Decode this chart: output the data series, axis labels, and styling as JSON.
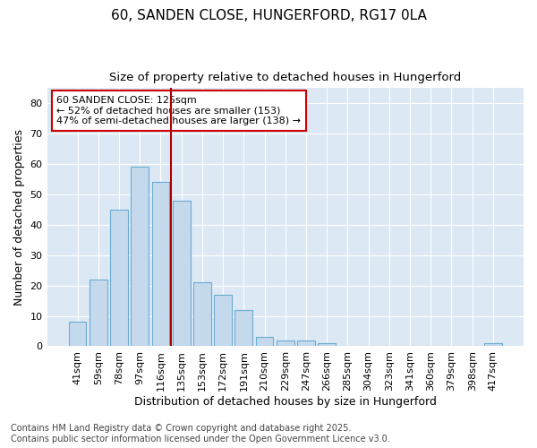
{
  "title": "60, SANDEN CLOSE, HUNGERFORD, RG17 0LA",
  "subtitle": "Size of property relative to detached houses in Hungerford",
  "xlabel": "Distribution of detached houses by size in Hungerford",
  "ylabel": "Number of detached properties",
  "categories": [
    "41sqm",
    "59sqm",
    "78sqm",
    "97sqm",
    "116sqm",
    "135sqm",
    "153sqm",
    "172sqm",
    "191sqm",
    "210sqm",
    "229sqm",
    "247sqm",
    "266sqm",
    "285sqm",
    "304sqm",
    "323sqm",
    "341sqm",
    "360sqm",
    "379sqm",
    "398sqm",
    "417sqm"
  ],
  "values": [
    8,
    22,
    45,
    59,
    54,
    48,
    21,
    17,
    12,
    3,
    2,
    2,
    1,
    0,
    0,
    0,
    0,
    0,
    0,
    0,
    1
  ],
  "bar_color": "#c5d9ed",
  "bar_edge_color": "#6aabd2",
  "vline_x": 4.5,
  "vline_color": "#aa0000",
  "annotation_text": "60 SANDEN CLOSE: 125sqm\n← 52% of detached houses are smaller (153)\n47% of semi-detached houses are larger (138) →",
  "annotation_box_color": "#ffffff",
  "annotation_box_edge": "#cc0000",
  "ylim": [
    0,
    85
  ],
  "yticks": [
    0,
    10,
    20,
    30,
    40,
    50,
    60,
    70,
    80
  ],
  "figure_bg_color": "#ffffff",
  "plot_bg_color": "#dce9f5",
  "grid_color": "#ffffff",
  "footer": "Contains HM Land Registry data © Crown copyright and database right 2025.\nContains public sector information licensed under the Open Government Licence v3.0.",
  "title_fontsize": 11,
  "subtitle_fontsize": 9.5,
  "xlabel_fontsize": 9,
  "ylabel_fontsize": 9,
  "tick_fontsize": 8,
  "annotation_fontsize": 8,
  "footer_fontsize": 7
}
